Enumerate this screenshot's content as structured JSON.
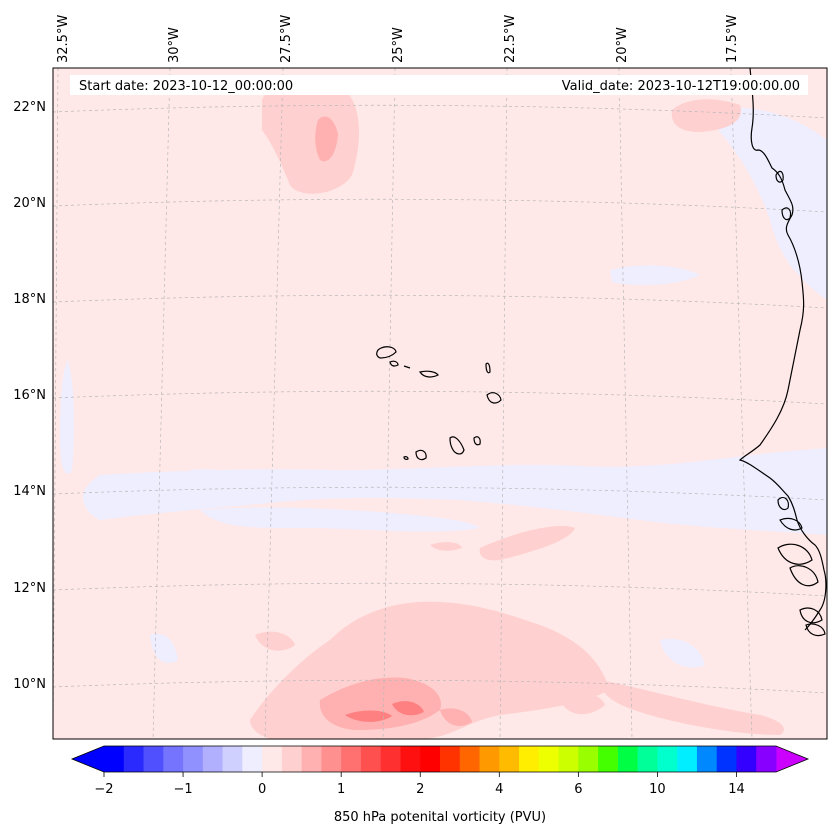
{
  "header": {
    "start_date": "Start date: 2023-10-12_00:00:00",
    "valid_date": "Valid_date: 2023-10-12T19:00:00.00"
  },
  "longitude_labels": [
    "32.5°W",
    "30°W",
    "27.5°W",
    "25°W",
    "22.5°W",
    "20°W",
    "17.5°W"
  ],
  "latitude_labels": [
    "22°N",
    "20°N",
    "18°N",
    "16°N",
    "14°N",
    "12°N",
    "10°N"
  ],
  "colorbar": {
    "title": "850 hPa potenital vorticity (PVU)",
    "tick_labels": [
      "−2",
      "−1",
      "0",
      "1",
      "2",
      "4",
      "6",
      "10",
      "14"
    ],
    "colors": [
      "#0000ff",
      "#2a2aff",
      "#5050ff",
      "#7474ff",
      "#9090ff",
      "#b0b0ff",
      "#d0d0ff",
      "#eeeeff",
      "#ffe8e8",
      "#ffd0d0",
      "#ffb0b0",
      "#ff9090",
      "#ff7070",
      "#ff5050",
      "#ff3030",
      "#ff1010",
      "#ff0000",
      "#ff3300",
      "#ff6600",
      "#ff9900",
      "#ffbb00",
      "#ffee00",
      "#eeff00",
      "#ccff00",
      "#99ff00",
      "#44ff00",
      "#00ff44",
      "#00ff99",
      "#00ffcc",
      "#00eeff",
      "#0088ff",
      "#0033ff",
      "#3300ff",
      "#8800ff"
    ],
    "extend_low": "#0000ff",
    "extend_high": "#cc00ff"
  },
  "palette": {
    "background": "#ffe8e8",
    "light_blue": "#eeeeff",
    "light_red": "#ffd0d0",
    "mid_red": "#ffb0b0",
    "deep_red": "#ff8080",
    "coast": "#000000"
  }
}
